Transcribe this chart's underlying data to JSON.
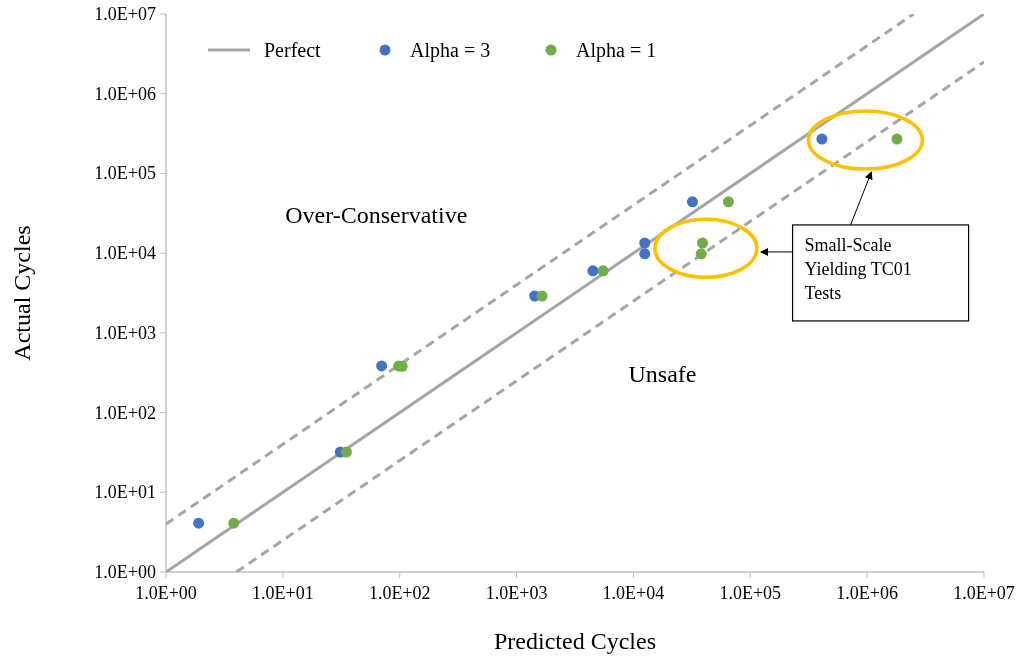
{
  "chart_data": {
    "type": "scatter",
    "xlabel": "Predicted Cycles",
    "ylabel": "Actual Cycles",
    "log": "xy",
    "marker": "circle",
    "legend": "top left",
    "grid": false,
    "xlim": [
      1,
      10000000
    ],
    "ylim": [
      1,
      10000000
    ],
    "xticks": [
      {
        "value": 1,
        "label": "1.0E+00"
      },
      {
        "value": 10,
        "label": "1.0E+01"
      },
      {
        "value": 100,
        "label": "1.0E+02"
      },
      {
        "value": 1000,
        "label": "1.0E+03"
      },
      {
        "value": 10000,
        "label": "1.0E+04"
      },
      {
        "value": 100000,
        "label": "1.0E+05"
      },
      {
        "value": 1000000,
        "label": "1.0E+06"
      },
      {
        "value": 10000000,
        "label": "1.0E+07"
      }
    ],
    "yticks": [
      {
        "value": 1,
        "label": "1.0E+00"
      },
      {
        "value": 10,
        "label": "1.0E+01"
      },
      {
        "value": 100,
        "label": "1.0E+02"
      },
      {
        "value": 1000,
        "label": "1.0E+03"
      },
      {
        "value": 10000,
        "label": "1.0E+04"
      },
      {
        "value": 100000,
        "label": "1.0E+05"
      },
      {
        "value": 1000000,
        "label": "1.0E+06"
      },
      {
        "value": 10000000,
        "label": "1.0E+07"
      }
    ],
    "series": [
      {
        "name": "Perfect",
        "type": "line",
        "color": "#a5a5a5",
        "line_style": "solid",
        "marker": "none",
        "x": [
          1,
          10000000
        ],
        "values": [
          1,
          10000000
        ]
      },
      {
        "type": "line",
        "color": "#a5a5a5",
        "line_style": "dashed",
        "marker": "none",
        "x": [
          1,
          2500000
        ],
        "values": [
          4,
          10000000
        ]
      },
      {
        "type": "line",
        "color": "#a5a5a5",
        "line_style": "dashed",
        "marker": "none",
        "x": [
          4,
          10000000
        ],
        "values": [
          1,
          2500000
        ]
      },
      {
        "name": "Alpha = 3",
        "color": "#4472c4",
        "x": [
          1.9,
          31,
          70,
          1430,
          4500,
          12500,
          12500,
          32000,
          410000
        ],
        "values": [
          4.1,
          32,
          385,
          2900,
          6000,
          13400,
          9800,
          44000,
          270000
        ]
      },
      {
        "name": "Alpha = 1",
        "color": "#70ad47",
        "x": [
          3.8,
          35,
          98,
          105,
          1650,
          5500,
          39000,
          38000,
          65000,
          1800000
        ],
        "values": [
          4.1,
          32,
          385,
          380,
          2900,
          6000,
          13400,
          9800,
          44000,
          270000
        ]
      }
    ],
    "annotations": [
      "Over-Conservative",
      "Unsafe",
      "Small-Scale Yielding TC01 Tests"
    ]
  }
}
